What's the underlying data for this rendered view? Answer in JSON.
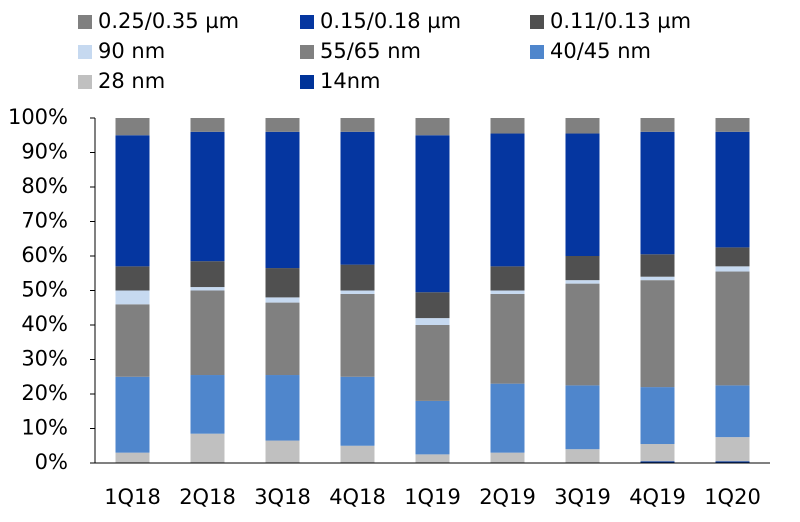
{
  "chart_data": {
    "type": "stacked_bar",
    "categories": [
      "1Q18",
      "2Q18",
      "3Q18",
      "4Q18",
      "1Q19",
      "2Q19",
      "3Q19",
      "4Q19",
      "1Q20"
    ],
    "series": [
      {
        "name": "0.25/0.35 µm",
        "color": "#808080",
        "values": [
          5,
          4,
          4,
          4,
          5,
          4.5,
          4.5,
          4,
          4
        ]
      },
      {
        "name": "0.15/0.18 µm",
        "color": "#0536a0",
        "values": [
          38,
          37.5,
          39.5,
          38.5,
          45.5,
          38.5,
          35.5,
          35.5,
          33.5
        ]
      },
      {
        "name": "0.11/0.13 µm",
        "color": "#505050",
        "values": [
          7,
          7.5,
          8.5,
          7.5,
          7.5,
          7,
          7,
          6.5,
          5.5
        ]
      },
      {
        "name": "90 nm",
        "color": "#c6d9f0",
        "values": [
          4,
          1,
          1.5,
          1,
          2,
          1,
          1,
          1,
          1.5
        ]
      },
      {
        "name": "55/65 nm",
        "color": "#808080",
        "values": [
          21,
          24.5,
          21,
          24,
          22,
          26,
          29.5,
          31,
          33
        ]
      },
      {
        "name": "40/45 nm",
        "color": "#4f86cc",
        "values": [
          22,
          17,
          19,
          20,
          15.5,
          20,
          18.5,
          16.5,
          15
        ]
      },
      {
        "name": "28 nm",
        "color": "#c0c0c0",
        "values": [
          3,
          8.5,
          6.5,
          5,
          2.5,
          3,
          4,
          5,
          7
        ]
      },
      {
        "name": "14nm",
        "color": "#003399",
        "values": [
          0,
          0,
          0,
          0,
          0,
          0,
          0,
          0.5,
          0.5
        ]
      }
    ],
    "ylim": [
      0,
      100
    ],
    "yticks": [
      {
        "value": 0,
        "label": "0%"
      },
      {
        "value": 10,
        "label": "10%"
      },
      {
        "value": 20,
        "label": "20%"
      },
      {
        "value": 30,
        "label": "30%"
      },
      {
        "value": 40,
        "label": "40%"
      },
      {
        "value": 50,
        "label": "50%"
      },
      {
        "value": 60,
        "label": "60%"
      },
      {
        "value": 70,
        "label": "70%"
      },
      {
        "value": 80,
        "label": "80%"
      },
      {
        "value": 90,
        "label": "90%"
      },
      {
        "value": 100,
        "label": "100%"
      }
    ],
    "grid": false
  }
}
